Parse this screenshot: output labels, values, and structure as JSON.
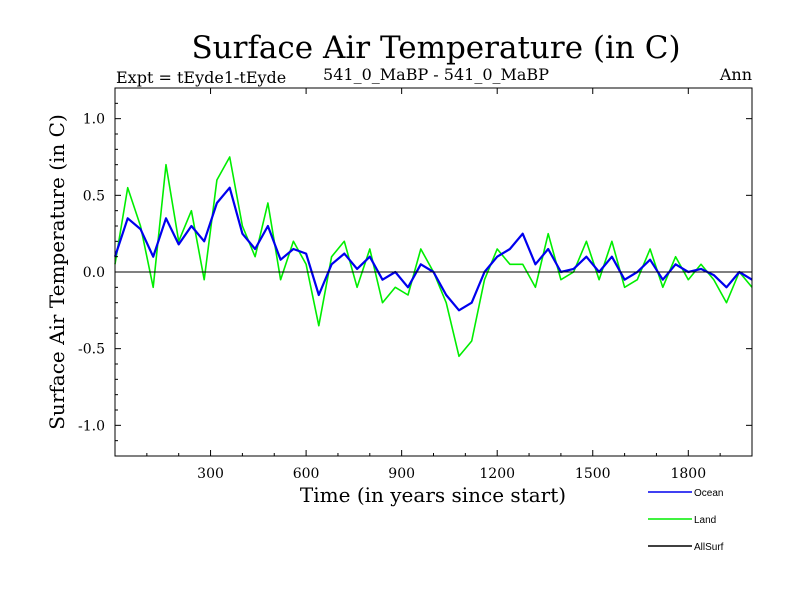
{
  "chart_data": {
    "type": "line",
    "title": "Surface Air Temperature (in C)",
    "subtitle_left": "Expt = tEyde1-tEyde",
    "subtitle_center": "541_0_MaBP - 541_0_MaBP",
    "subtitle_right": "Ann",
    "xlabel": "Time (in years since start)",
    "ylabel": "Surface Air Temperature (in C)",
    "xlim": [
      0,
      2000
    ],
    "ylim": [
      -1.2,
      1.2
    ],
    "xticks": [
      300,
      600,
      900,
      1200,
      1500,
      1800
    ],
    "xtick_labels": [
      "300",
      "600",
      "900",
      "1200",
      "1500",
      "1800"
    ],
    "yticks": [
      -1.0,
      -0.5,
      0.0,
      0.5,
      1.0
    ],
    "ytick_labels": [
      "-1.0",
      "-0.5",
      "0.0",
      "0.5",
      "1.0"
    ],
    "zero_line": 0.0,
    "series": [
      {
        "name": "Land",
        "color": "#00ee00",
        "step": 40,
        "values": [
          0.05,
          0.55,
          0.3,
          -0.1,
          0.7,
          0.2,
          0.4,
          -0.05,
          0.6,
          0.75,
          0.3,
          0.1,
          0.45,
          -0.05,
          0.2,
          0.05,
          -0.35,
          0.1,
          0.2,
          -0.1,
          0.15,
          -0.2,
          -0.1,
          -0.15,
          0.15,
          0.0,
          -0.2,
          -0.55,
          -0.45,
          -0.05,
          0.15,
          0.05,
          0.05,
          -0.1,
          0.25,
          -0.05,
          0.0,
          0.2,
          -0.05,
          0.2,
          -0.1,
          -0.05,
          0.15,
          -0.1,
          0.1,
          -0.05,
          0.05,
          -0.05,
          -0.2,
          0.0,
          -0.1
        ]
      },
      {
        "name": "Ocean",
        "color": "#0000ee",
        "step": 40,
        "values": [
          0.1,
          0.35,
          0.28,
          0.1,
          0.35,
          0.18,
          0.3,
          0.2,
          0.45,
          0.55,
          0.25,
          0.15,
          0.3,
          0.08,
          0.15,
          0.12,
          -0.15,
          0.05,
          0.12,
          0.02,
          0.1,
          -0.05,
          0.0,
          -0.1,
          0.05,
          0.0,
          -0.15,
          -0.25,
          -0.2,
          0.0,
          0.1,
          0.15,
          0.25,
          0.05,
          0.15,
          0.0,
          0.02,
          0.1,
          0.0,
          0.1,
          -0.05,
          0.0,
          0.08,
          -0.05,
          0.05,
          0.0,
          0.02,
          -0.02,
          -0.1,
          0.0,
          -0.05
        ]
      },
      {
        "name": "AllSurf",
        "color": "#000000",
        "step": 40,
        "values": []
      }
    ],
    "legend": {
      "placement": "bottom-right",
      "items": [
        "Ocean",
        "Land",
        "AllSurf"
      ]
    }
  }
}
